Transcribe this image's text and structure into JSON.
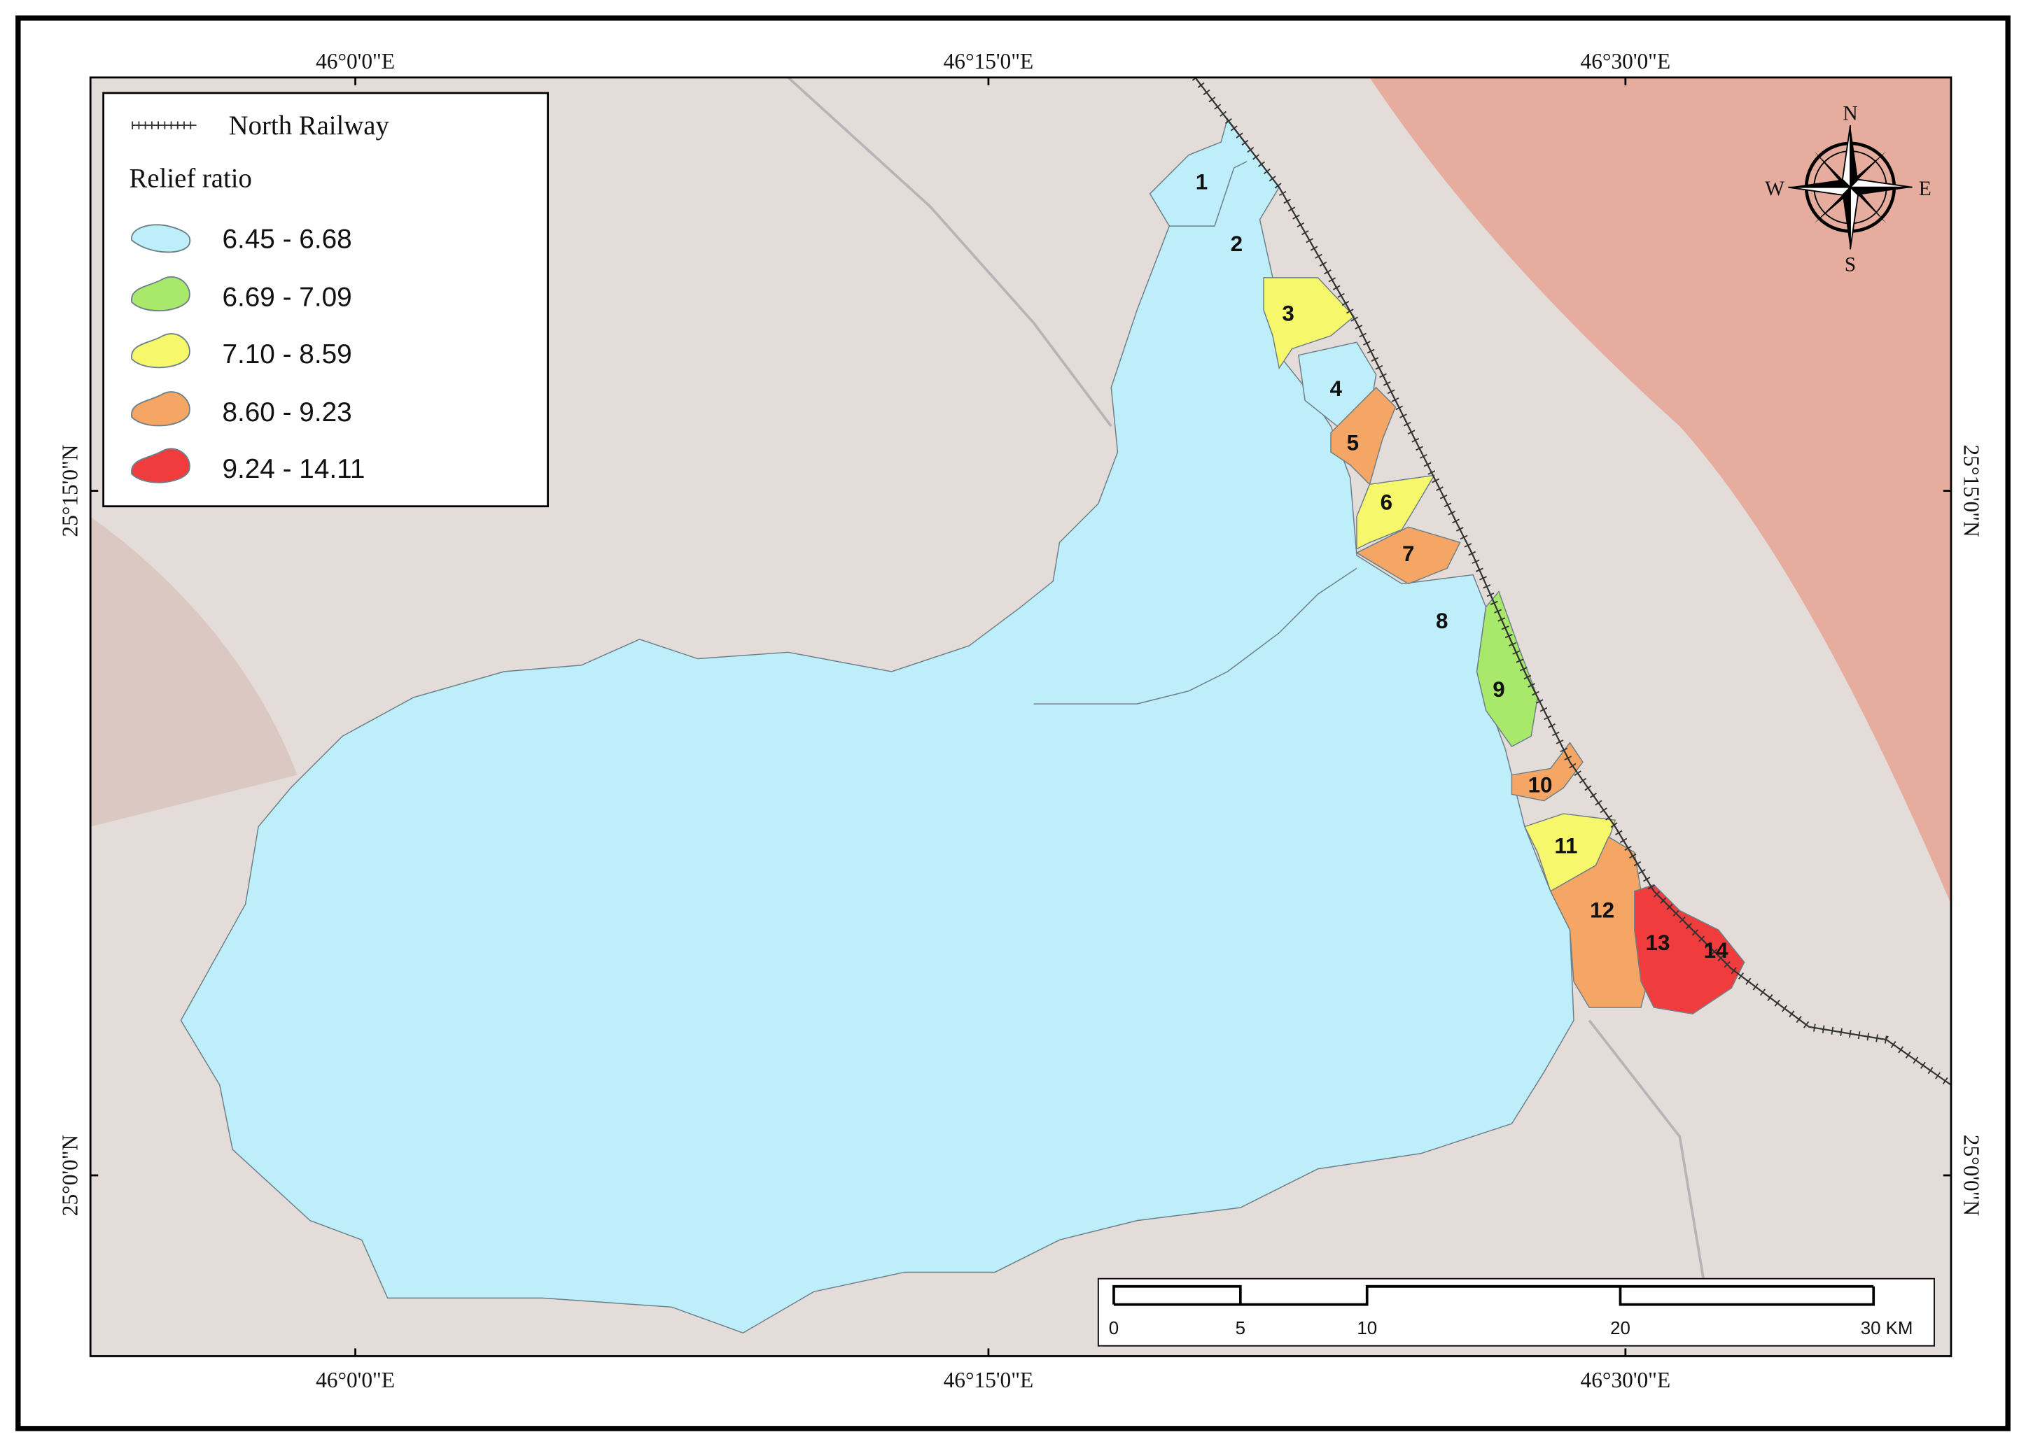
{
  "coordinates": {
    "top": [
      "46°0'0\"E",
      "46°15'0\"E",
      "46°30'0\"E"
    ],
    "bottom": [
      "46°0'0\"E",
      "46°15'0\"E",
      "46°30'0\"E"
    ],
    "left": [
      "25°15'0\"N",
      "25°0'0\"N"
    ],
    "right": [
      "25°15'0\"N",
      "25°0'0\"N"
    ]
  },
  "legend": {
    "railway": "North Railway",
    "title": "Relief ratio",
    "classes": [
      "6.45 - 6.68",
      "6.69 - 7.09",
      "7.10 - 8.59",
      "8.60 - 9.23",
      "9.24 - 14.11"
    ]
  },
  "basins": [
    "1",
    "2",
    "3",
    "4",
    "5",
    "6",
    "7",
    "8",
    "9",
    "10",
    "11",
    "12",
    "13",
    "14"
  ],
  "scale_bar": {
    "labels": [
      "0",
      "5",
      "10",
      "20",
      "30 KM"
    ]
  },
  "compass": {
    "n": "N",
    "e": "E",
    "s": "S",
    "w": "W"
  }
}
